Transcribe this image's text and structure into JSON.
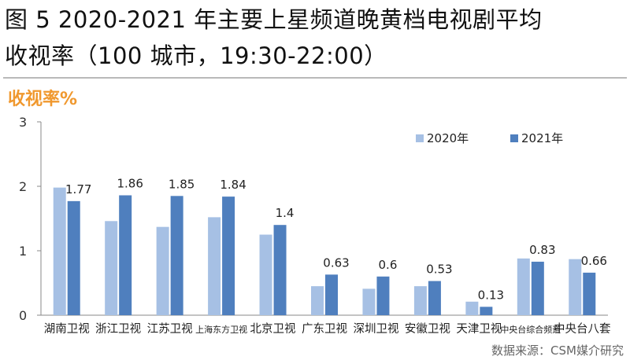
{
  "title_line1": "图 5 2020-2021 年主要上星频道晚黄档电视剧平均",
  "title_line2": "收视率（100 城市，19:30-22:00）",
  "source": "数据来源：CSM媒介研究",
  "colors": {
    "s2020": "#a6c0e4",
    "s2021": "#4f7fbe",
    "unit": "#f0982e",
    "axis": "#888888"
  },
  "chart_data": {
    "type": "bar",
    "title": "图 5 2020-2021 年主要上星频道晚黄档电视剧平均收视率（100 城市，19:30-22:00）",
    "ylabel": "收视率%",
    "ylim": [
      0,
      3
    ],
    "yticks": [
      "0",
      "1",
      "2",
      "3"
    ],
    "grid": false,
    "legend_position": "top-right",
    "categories": [
      "湖南卫视",
      "浙江卫视",
      "江苏卫视",
      "上海东方卫视",
      "北京卫视",
      "广东卫视",
      "深圳卫视",
      "安徽卫视",
      "天津卫视",
      "中央台综合频道",
      "中央台八套"
    ],
    "series": [
      {
        "name": "2020年",
        "values": [
          1.98,
          1.46,
          1.37,
          1.52,
          1.25,
          0.45,
          0.41,
          0.45,
          0.21,
          0.88,
          0.87
        ],
        "labels": [
          "",
          "",
          "",
          "",
          "",
          "",
          "",
          "",
          "",
          "",
          ""
        ]
      },
      {
        "name": "2021年",
        "values": [
          1.77,
          1.86,
          1.85,
          1.84,
          1.4,
          0.63,
          0.6,
          0.53,
          0.13,
          0.83,
          0.66
        ],
        "labels": [
          "1.77",
          "1.86",
          "1.85",
          "1.84",
          "1.4",
          "0.63",
          "0.6",
          "0.53",
          "0.13",
          "0.83",
          "0.66"
        ]
      }
    ]
  }
}
